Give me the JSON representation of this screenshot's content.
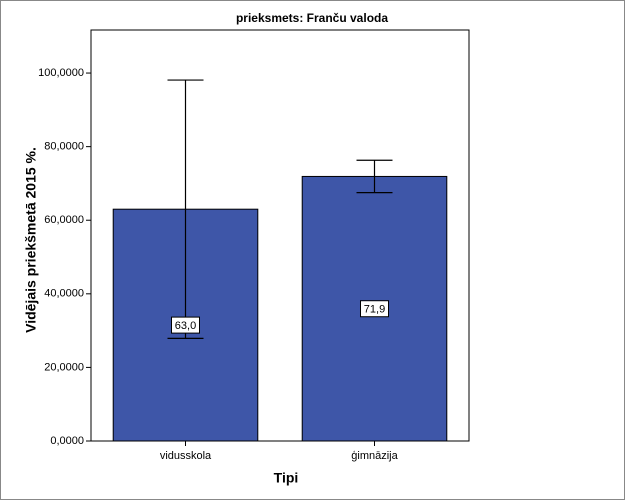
{
  "chart_data": {
    "type": "bar",
    "title": "prieksmets: Franču valoda",
    "x_label": "Tipi",
    "y_label": "Vidējais priekšmetā 2015 %.",
    "categories": [
      "vidusskola",
      "ģimnāzija"
    ],
    "values": [
      63.0,
      71.9
    ],
    "value_labels": [
      "63,0",
      "71,9"
    ],
    "errors": [
      35.1,
      4.4
    ],
    "color": "#3e56a8",
    "ylim": [
      0,
      111.7
    ],
    "yticks": [
      {
        "value": 0,
        "label": "0,0000"
      },
      {
        "value": 20,
        "label": "20,0000"
      },
      {
        "value": 40,
        "label": "40,0000"
      },
      {
        "value": 60,
        "label": "60,0000"
      },
      {
        "value": 80,
        "label": "80,0000"
      },
      {
        "value": 100,
        "label": "100,0000"
      }
    ]
  }
}
